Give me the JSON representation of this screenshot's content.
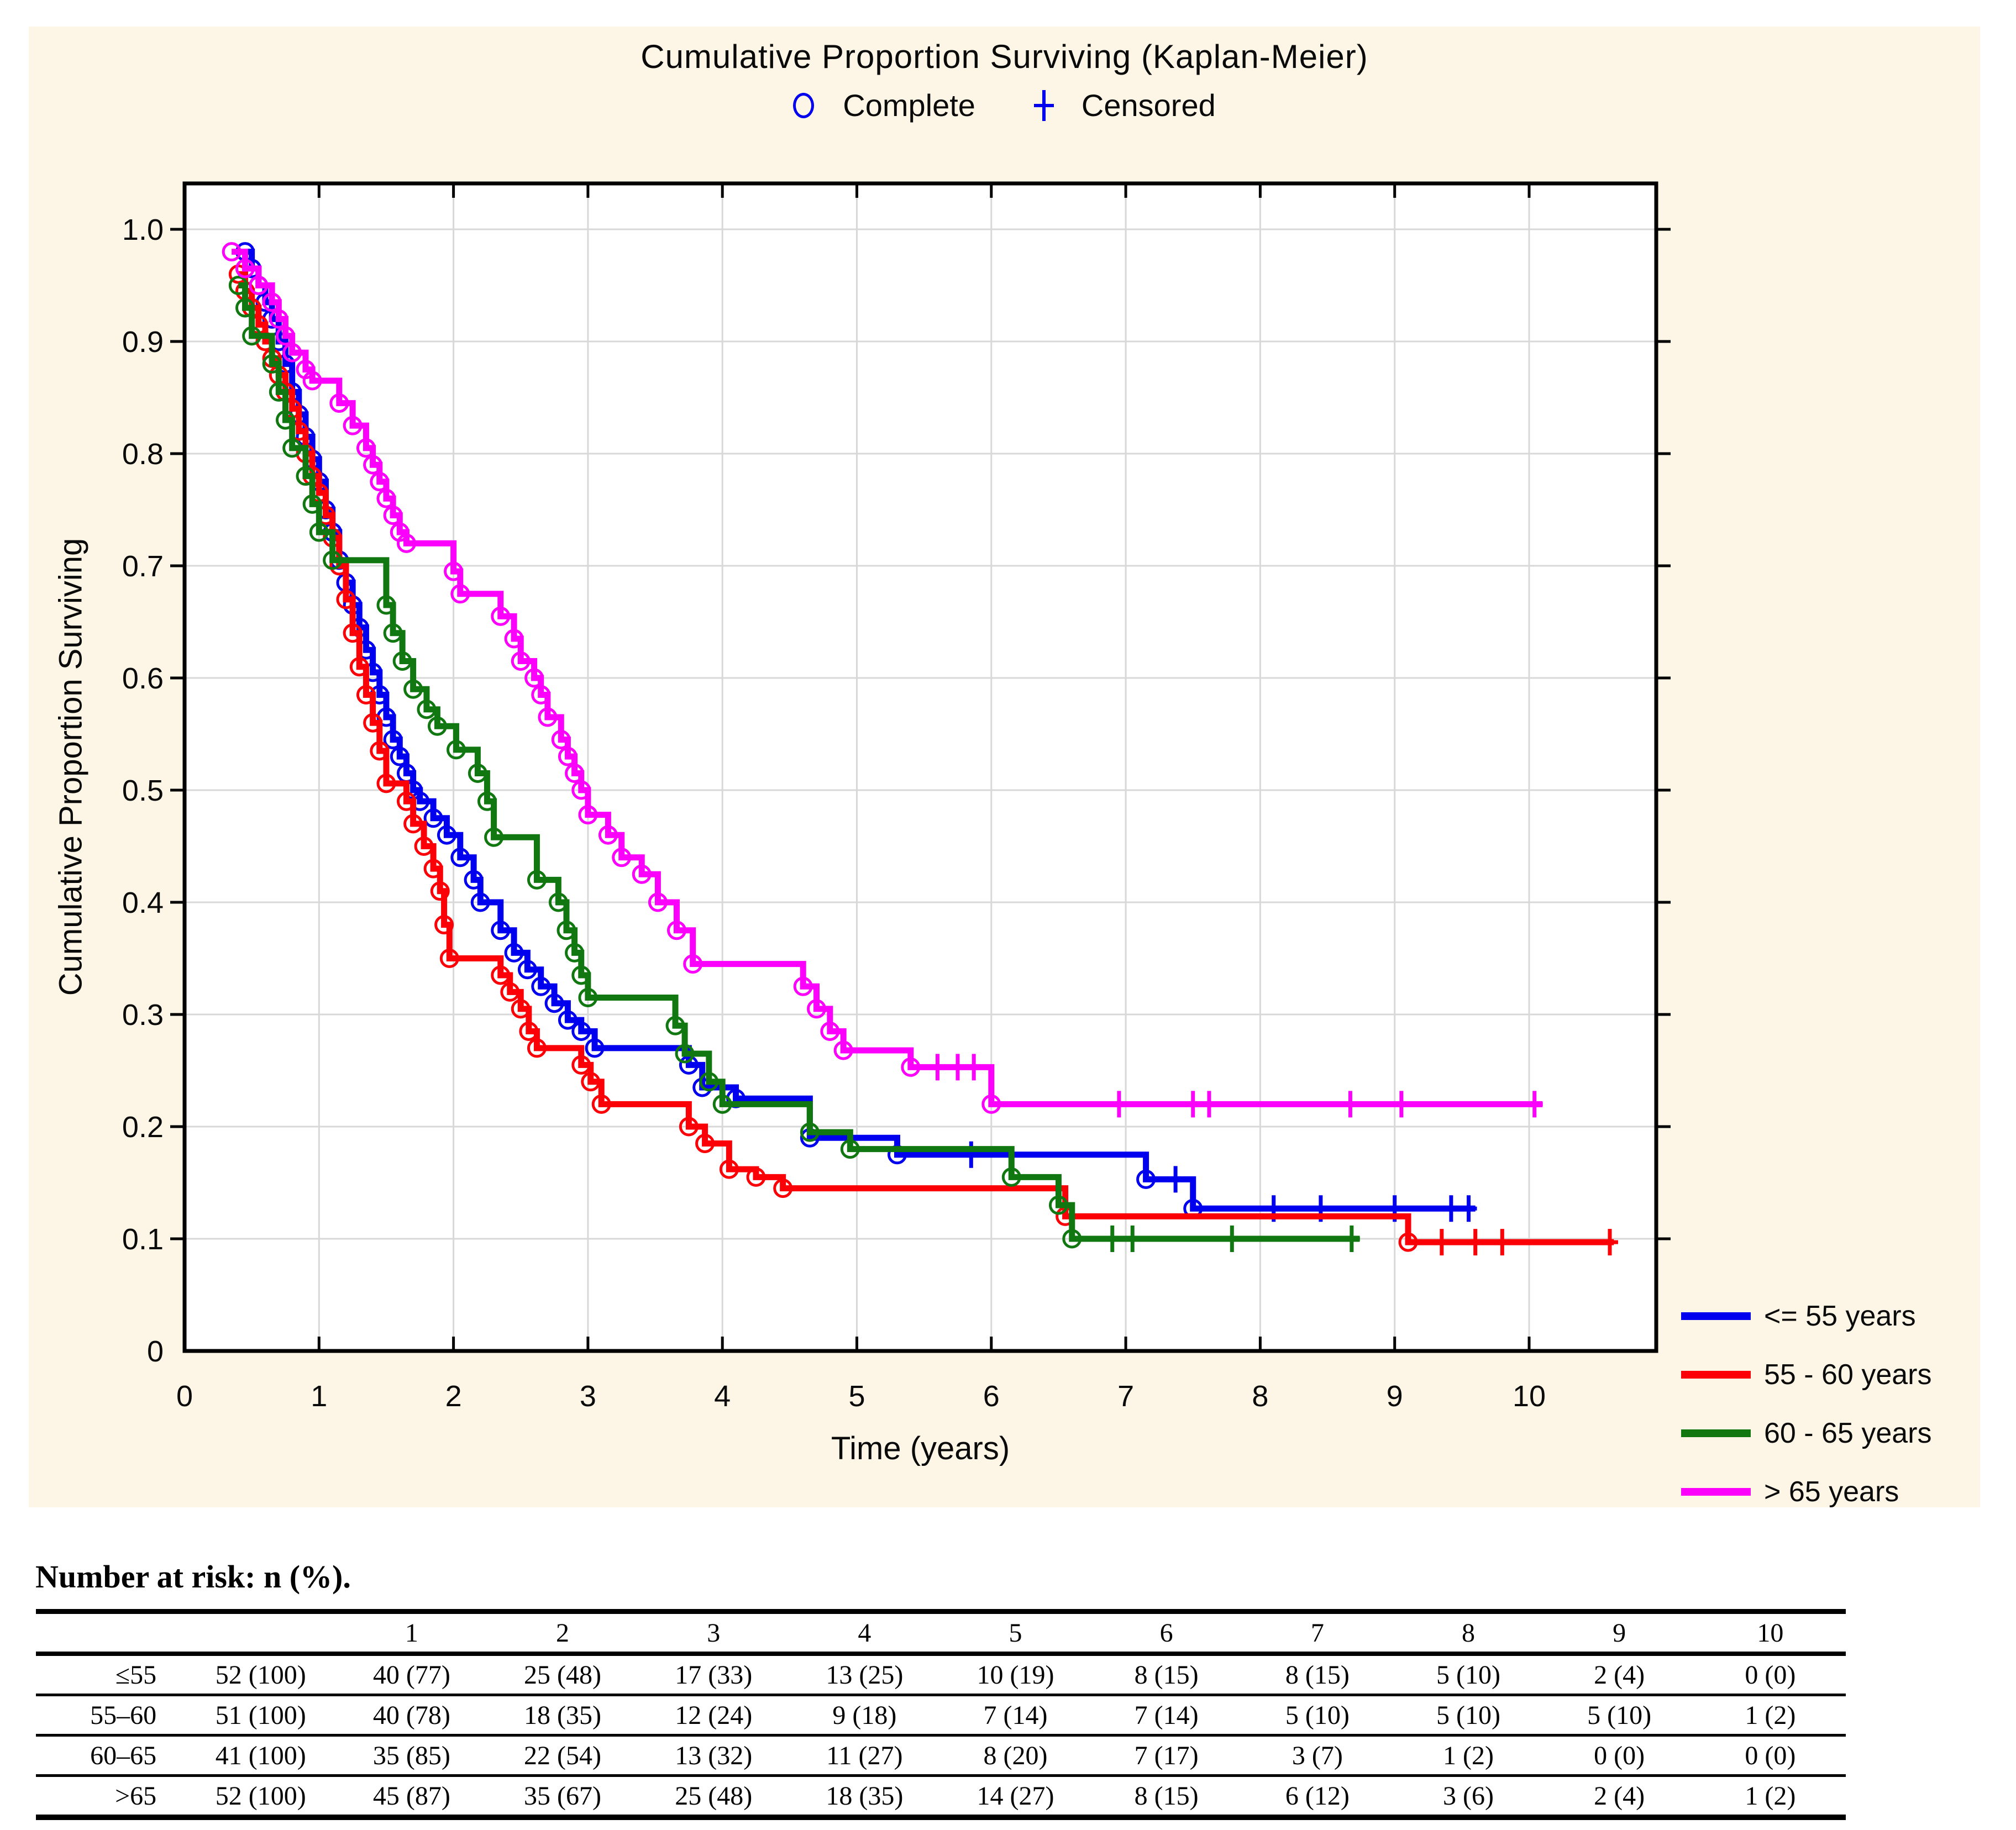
{
  "chart": {
    "title": "Cumulative Proportion Surviving (Kaplan-Meier)",
    "marker_legend": {
      "complete": "Complete",
      "censored": "Censored",
      "marker_color": "#0000ee"
    },
    "y_axis": {
      "label": "Cumulative Proportion Surviving"
    },
    "x_axis": {
      "label": "Time (years)"
    }
  },
  "legend": {
    "items": [
      {
        "label": "<= 55 years",
        "color": "#0000ee"
      },
      {
        "label": "55 - 60 years",
        "color": "#fb0006"
      },
      {
        "label": "60 - 65 years",
        "color": "#117711"
      },
      {
        "label": "> 65 years",
        "color": "#fb00fb"
      }
    ]
  },
  "chart_data": {
    "type": "line",
    "subtype": "kaplan-meier-step",
    "title": "Cumulative Proportion Surviving (Kaplan-Meier)",
    "xlabel": "Time (years)",
    "ylabel": "Cumulative Proportion Surviving",
    "xlim": [
      0,
      10.94
    ],
    "ylim": [
      0,
      1.04
    ],
    "x_ticks": [
      0,
      1,
      2,
      3,
      4,
      5,
      6,
      7,
      8,
      9,
      10
    ],
    "y_ticks": [
      {
        "v": 1.0,
        "label": "1.0"
      },
      {
        "v": 0.9,
        "label": "0.9"
      },
      {
        "v": 0.8,
        "label": "0.8"
      },
      {
        "v": 0.7,
        "label": "0.7"
      },
      {
        "v": 0.6,
        "label": "0.6"
      },
      {
        "v": 0.5,
        "label": "0.5"
      },
      {
        "v": 0.4,
        "label": "0.4"
      },
      {
        "v": 0.3,
        "label": "0.3"
      },
      {
        "v": 0.2,
        "label": "0.2"
      },
      {
        "v": 0.1,
        "label": "0.1"
      },
      {
        "v": 0.0,
        "label": "0"
      }
    ],
    "grid": true,
    "legend_position": "bottom-right-outside",
    "series": [
      {
        "name": "<= 55 years",
        "color": "#0000ee",
        "steps": [
          [
            0.45,
            0.98
          ],
          [
            0.5,
            0.965
          ],
          [
            0.55,
            0.95
          ],
          [
            0.6,
            0.935
          ],
          [
            0.65,
            0.92
          ],
          [
            0.7,
            0.9
          ],
          [
            0.75,
            0.88
          ],
          [
            0.8,
            0.855
          ],
          [
            0.85,
            0.835
          ],
          [
            0.9,
            0.815
          ],
          [
            0.95,
            0.795
          ],
          [
            1.0,
            0.775
          ],
          [
            1.05,
            0.75
          ],
          [
            1.1,
            0.73
          ],
          [
            1.15,
            0.705
          ],
          [
            1.2,
            0.685
          ],
          [
            1.25,
            0.665
          ],
          [
            1.3,
            0.645
          ],
          [
            1.35,
            0.625
          ],
          [
            1.4,
            0.605
          ],
          [
            1.45,
            0.585
          ],
          [
            1.5,
            0.565
          ],
          [
            1.55,
            0.545
          ],
          [
            1.6,
            0.53
          ],
          [
            1.65,
            0.515
          ],
          [
            1.7,
            0.5
          ],
          [
            1.75,
            0.49
          ],
          [
            1.85,
            0.475
          ],
          [
            1.95,
            0.46
          ],
          [
            2.05,
            0.44
          ],
          [
            2.15,
            0.42
          ],
          [
            2.2,
            0.4
          ],
          [
            2.35,
            0.375
          ],
          [
            2.45,
            0.355
          ],
          [
            2.55,
            0.34
          ],
          [
            2.65,
            0.325
          ],
          [
            2.75,
            0.31
          ],
          [
            2.85,
            0.295
          ],
          [
            2.95,
            0.285
          ],
          [
            3.05,
            0.27
          ],
          [
            3.75,
            0.255
          ],
          [
            3.85,
            0.235
          ],
          [
            4.1,
            0.225
          ],
          [
            4.65,
            0.19
          ],
          [
            5.3,
            0.175
          ],
          [
            7.15,
            0.153
          ],
          [
            7.5,
            0.127
          ]
        ],
        "end_time": 9.6,
        "censored": [
          [
            5.85,
            0.175
          ],
          [
            7.37,
            0.153
          ],
          [
            8.1,
            0.127
          ],
          [
            8.45,
            0.127
          ],
          [
            9.0,
            0.127
          ],
          [
            9.42,
            0.127
          ],
          [
            9.55,
            0.127
          ]
        ]
      },
      {
        "name": "55 - 60 years",
        "color": "#fb0006",
        "steps": [
          [
            0.4,
            0.96
          ],
          [
            0.45,
            0.945
          ],
          [
            0.5,
            0.93
          ],
          [
            0.55,
            0.915
          ],
          [
            0.6,
            0.9
          ],
          [
            0.65,
            0.885
          ],
          [
            0.7,
            0.87
          ],
          [
            0.75,
            0.855
          ],
          [
            0.8,
            0.84
          ],
          [
            0.85,
            0.82
          ],
          [
            0.9,
            0.8
          ],
          [
            0.95,
            0.78
          ],
          [
            1.0,
            0.765
          ],
          [
            1.05,
            0.745
          ],
          [
            1.1,
            0.725
          ],
          [
            1.15,
            0.7
          ],
          [
            1.2,
            0.67
          ],
          [
            1.25,
            0.64
          ],
          [
            1.3,
            0.61
          ],
          [
            1.35,
            0.585
          ],
          [
            1.4,
            0.56
          ],
          [
            1.45,
            0.535
          ],
          [
            1.5,
            0.506
          ],
          [
            1.65,
            0.49
          ],
          [
            1.7,
            0.47
          ],
          [
            1.78,
            0.45
          ],
          [
            1.85,
            0.43
          ],
          [
            1.9,
            0.41
          ],
          [
            1.93,
            0.38
          ],
          [
            1.97,
            0.35
          ],
          [
            2.35,
            0.335
          ],
          [
            2.42,
            0.32
          ],
          [
            2.5,
            0.305
          ],
          [
            2.56,
            0.285
          ],
          [
            2.62,
            0.27
          ],
          [
            2.95,
            0.255
          ],
          [
            3.02,
            0.24
          ],
          [
            3.1,
            0.22
          ],
          [
            3.75,
            0.2
          ],
          [
            3.87,
            0.185
          ],
          [
            4.05,
            0.162
          ],
          [
            4.25,
            0.155
          ],
          [
            4.45,
            0.145
          ],
          [
            6.55,
            0.12
          ],
          [
            9.1,
            0.097
          ]
        ],
        "end_time": 10.63,
        "censored": [
          [
            9.35,
            0.097
          ],
          [
            9.6,
            0.097
          ],
          [
            9.8,
            0.097
          ],
          [
            10.6,
            0.097
          ]
        ]
      },
      {
        "name": "60 - 65 years",
        "color": "#117711",
        "steps": [
          [
            0.4,
            0.95
          ],
          [
            0.45,
            0.93
          ],
          [
            0.5,
            0.905
          ],
          [
            0.65,
            0.88
          ],
          [
            0.7,
            0.855
          ],
          [
            0.75,
            0.83
          ],
          [
            0.8,
            0.805
          ],
          [
            0.9,
            0.78
          ],
          [
            0.95,
            0.755
          ],
          [
            1.0,
            0.73
          ],
          [
            1.1,
            0.705
          ],
          [
            1.5,
            0.665
          ],
          [
            1.55,
            0.64
          ],
          [
            1.62,
            0.615
          ],
          [
            1.7,
            0.59
          ],
          [
            1.8,
            0.572
          ],
          [
            1.88,
            0.557
          ],
          [
            2.02,
            0.536
          ],
          [
            2.18,
            0.515
          ],
          [
            2.25,
            0.49
          ],
          [
            2.3,
            0.458
          ],
          [
            2.62,
            0.42
          ],
          [
            2.78,
            0.4
          ],
          [
            2.84,
            0.375
          ],
          [
            2.9,
            0.355
          ],
          [
            2.95,
            0.335
          ],
          [
            3.0,
            0.315
          ],
          [
            3.65,
            0.29
          ],
          [
            3.72,
            0.265
          ],
          [
            3.9,
            0.24
          ],
          [
            4.0,
            0.22
          ],
          [
            4.65,
            0.195
          ],
          [
            4.95,
            0.18
          ],
          [
            6.15,
            0.155
          ],
          [
            6.5,
            0.13
          ],
          [
            6.6,
            0.1
          ]
        ],
        "end_time": 8.74,
        "censored": [
          [
            6.9,
            0.1
          ],
          [
            7.05,
            0.1
          ],
          [
            7.79,
            0.1
          ],
          [
            8.68,
            0.1
          ]
        ]
      },
      {
        "name": "> 65 years",
        "color": "#fb00fb",
        "steps": [
          [
            0.35,
            0.98
          ],
          [
            0.45,
            0.965
          ],
          [
            0.55,
            0.95
          ],
          [
            0.65,
            0.935
          ],
          [
            0.7,
            0.92
          ],
          [
            0.75,
            0.905
          ],
          [
            0.8,
            0.89
          ],
          [
            0.9,
            0.875
          ],
          [
            0.95,
            0.865
          ],
          [
            1.15,
            0.845
          ],
          [
            1.25,
            0.825
          ],
          [
            1.35,
            0.805
          ],
          [
            1.4,
            0.79
          ],
          [
            1.45,
            0.775
          ],
          [
            1.5,
            0.76
          ],
          [
            1.55,
            0.745
          ],
          [
            1.6,
            0.73
          ],
          [
            1.65,
            0.72
          ],
          [
            2.0,
            0.695
          ],
          [
            2.05,
            0.675
          ],
          [
            2.35,
            0.655
          ],
          [
            2.45,
            0.635
          ],
          [
            2.5,
            0.615
          ],
          [
            2.6,
            0.6
          ],
          [
            2.65,
            0.585
          ],
          [
            2.7,
            0.565
          ],
          [
            2.8,
            0.545
          ],
          [
            2.85,
            0.53
          ],
          [
            2.9,
            0.515
          ],
          [
            2.95,
            0.5
          ],
          [
            3.0,
            0.478
          ],
          [
            3.15,
            0.46
          ],
          [
            3.25,
            0.44
          ],
          [
            3.4,
            0.425
          ],
          [
            3.52,
            0.4
          ],
          [
            3.66,
            0.375
          ],
          [
            3.78,
            0.345
          ],
          [
            4.6,
            0.325
          ],
          [
            4.7,
            0.305
          ],
          [
            4.8,
            0.285
          ],
          [
            4.9,
            0.268
          ],
          [
            5.4,
            0.253
          ],
          [
            6.0,
            0.22
          ]
        ],
        "end_time": 10.1,
        "censored": [
          [
            5.6,
            0.253
          ],
          [
            5.75,
            0.253
          ],
          [
            5.87,
            0.253
          ],
          [
            6.95,
            0.22
          ],
          [
            7.5,
            0.22
          ],
          [
            7.62,
            0.22
          ],
          [
            8.67,
            0.22
          ],
          [
            9.05,
            0.22
          ],
          [
            10.04,
            0.22
          ]
        ]
      }
    ]
  },
  "risk_table": {
    "title": "Number at risk: n (%).",
    "col_headers": [
      "",
      "",
      "1",
      "2",
      "3",
      "4",
      "5",
      "6",
      "7",
      "8",
      "9",
      "10"
    ],
    "rows": [
      [
        "≤55",
        "52 (100)",
        "40 (77)",
        "25 (48)",
        "17 (33)",
        "13 (25)",
        "10 (19)",
        "8 (15)",
        "8 (15)",
        "5 (10)",
        "2 (4)",
        "0 (0)"
      ],
      [
        "55–60",
        "51 (100)",
        "40 (78)",
        "18 (35)",
        "12 (24)",
        "9 (18)",
        "7 (14)",
        "7 (14)",
        "5 (10)",
        "5 (10)",
        "5 (10)",
        "1 (2)"
      ],
      [
        "60–65",
        "41 (100)",
        "35 (85)",
        "22 (54)",
        "13 (32)",
        "11 (27)",
        "8 (20)",
        "7 (17)",
        "3 (7)",
        "1 (2)",
        "0 (0)",
        "0 (0)"
      ],
      [
        ">65",
        "52 (100)",
        "45 (87)",
        "35 (67)",
        "25 (48)",
        "18 (35)",
        "14 (27)",
        "8 (15)",
        "6 (12)",
        "3 (6)",
        "2 (4)",
        "1 (2)"
      ]
    ]
  },
  "colors": {
    "panel_background": "#fdf6e6",
    "plot_background": "#ffffff",
    "grid": "#d8d8d8",
    "frame": "#000000",
    "text": "#0a0a0a"
  }
}
